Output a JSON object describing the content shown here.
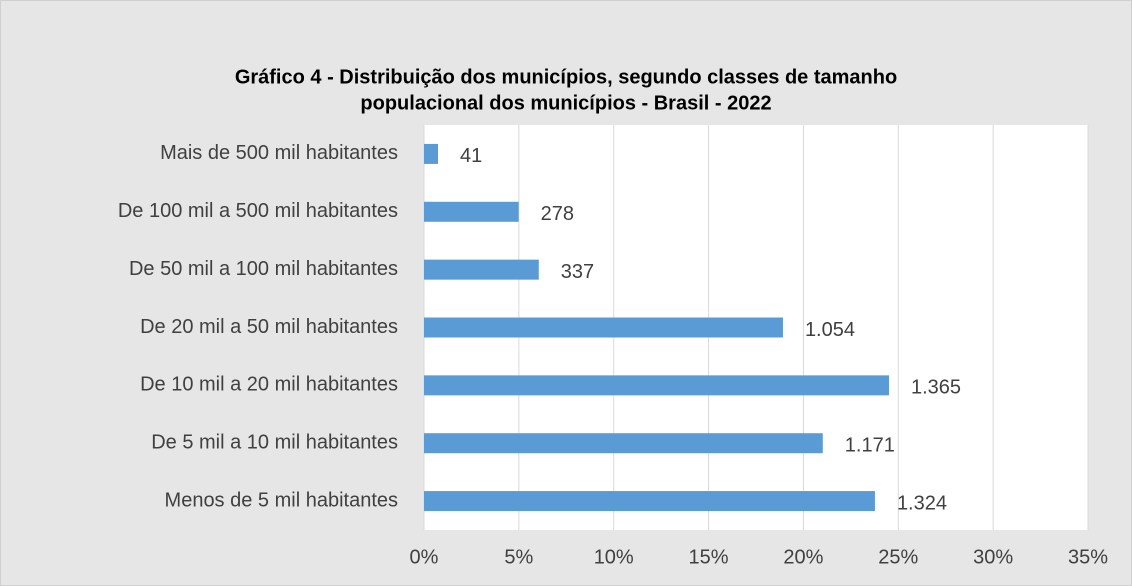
{
  "chart_data": {
    "type": "hbar",
    "title": [
      "Gráfico 4 - Distribuição dos municípios, segundo classes de tamanho",
      "populacional dos municípios - Brasil - 2022"
    ],
    "categories": [
      "Mais de 500 mil habitantes",
      "De 100 mil a 500 mil habitantes",
      "De 50 mil a 100 mil habitantes",
      "De 20 mil a 50 mil habitantes",
      "De 10 mil a 20 mil habitantes",
      "De 5 mil a 10 mil habitantes",
      "Menos de 5 mil habitantes"
    ],
    "values": [
      0.74,
      4.99,
      6.05,
      18.92,
      24.51,
      21.02,
      23.77
    ],
    "counts": [
      41,
      278,
      337,
      1054,
      1365,
      1171,
      1324
    ],
    "count_labels": [
      "41",
      "278",
      "337",
      "1.054",
      "1.365",
      "1.171",
      "1.324"
    ],
    "color": "#5b9bd5",
    "xlim": [
      0,
      35
    ],
    "xticks": [
      {
        "value": 0,
        "label": "0%"
      },
      {
        "value": 5,
        "label": "5%"
      },
      {
        "value": 10,
        "label": "10%"
      },
      {
        "value": 15,
        "label": "15%"
      },
      {
        "value": 20,
        "label": "20%"
      },
      {
        "value": 25,
        "label": "25%"
      },
      {
        "value": 30,
        "label": "30%"
      },
      {
        "value": 35,
        "label": "35%"
      }
    ],
    "grid": true
  }
}
